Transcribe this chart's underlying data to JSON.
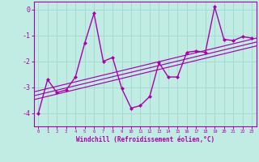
{
  "title": "",
  "xlabel": "Windchill (Refroidissement éolien,°C)",
  "bg_color": "#c0ece4",
  "line_color": "#aa00aa",
  "grid_color": "#a0d8cc",
  "x_data": [
    0,
    1,
    2,
    3,
    4,
    5,
    6,
    7,
    8,
    9,
    10,
    11,
    12,
    13,
    14,
    15,
    16,
    17,
    18,
    19,
    20,
    21,
    22,
    23
  ],
  "y_scatter": [
    -4.0,
    -2.7,
    -3.2,
    -3.1,
    -2.6,
    -1.3,
    -0.15,
    -2.0,
    -1.85,
    -3.05,
    -3.8,
    -3.7,
    -3.35,
    -2.05,
    -2.6,
    -2.6,
    -1.65,
    -1.6,
    -1.65,
    0.1,
    -1.15,
    -1.2,
    -1.05,
    -1.1
  ],
  "ylim": [
    -4.5,
    0.3
  ],
  "xlim": [
    -0.5,
    23.5
  ],
  "yticks": [
    0,
    -1,
    -2,
    -3,
    -4
  ],
  "xticks": [
    0,
    1,
    2,
    3,
    4,
    5,
    6,
    7,
    8,
    9,
    10,
    11,
    12,
    13,
    14,
    15,
    16,
    17,
    18,
    19,
    20,
    21,
    22,
    23
  ],
  "trend_offsets": [
    0.0,
    0.15,
    0.3
  ],
  "trend_x": [
    -0.5,
    23.5
  ]
}
